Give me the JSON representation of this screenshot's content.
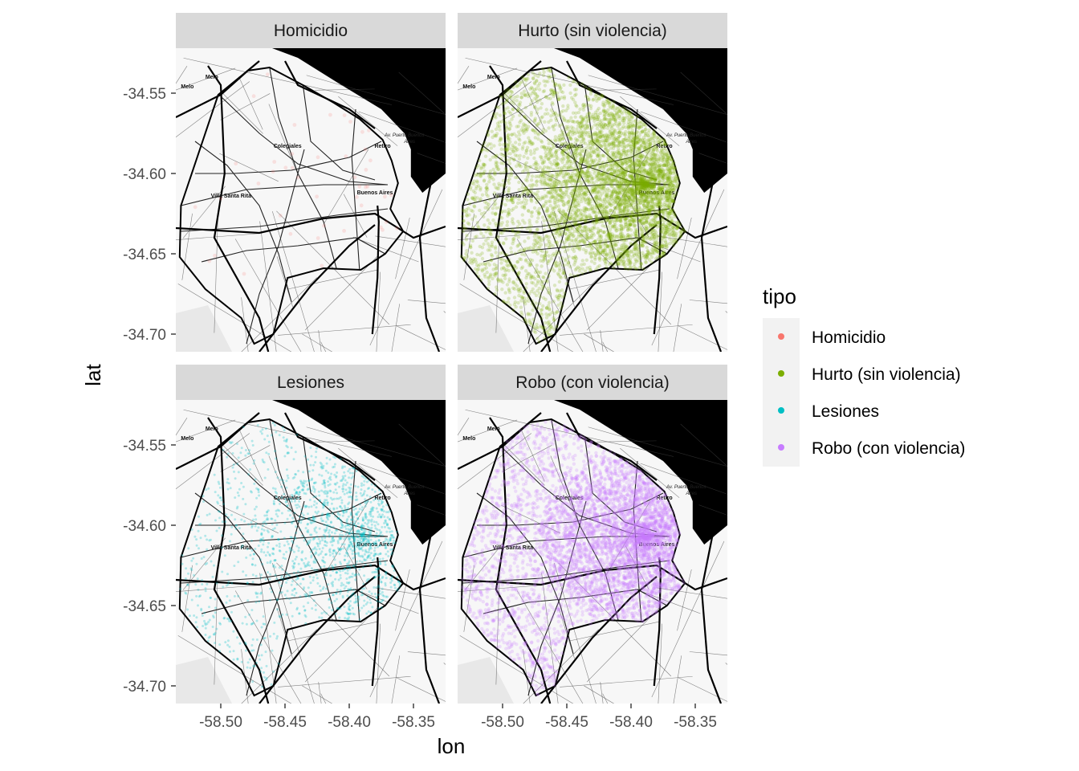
{
  "figure": {
    "xlabel": "lon",
    "ylabel": "lat",
    "legend_title": "tipo"
  },
  "chart_data": {
    "type": "scatter",
    "subtype": "faceted-map",
    "xlabel": "lon",
    "ylabel": "lat",
    "xlim": [
      -58.535,
      -58.325
    ],
    "ylim": [
      -34.711,
      -34.522
    ],
    "x_ticks": [
      -58.5,
      -58.45,
      -58.4,
      -58.35
    ],
    "x_tick_labels": [
      "-58.50",
      "-58.45",
      "-58.40",
      "-58.35"
    ],
    "y_ticks": [
      -34.55,
      -34.6,
      -34.65,
      -34.7
    ],
    "y_tick_labels": [
      "-34.55",
      "-34.60",
      "-34.65",
      "-34.70"
    ],
    "grid": false,
    "legend": {
      "title": "tipo",
      "placement": "right",
      "entries": [
        {
          "label": "Homicidio",
          "color": "#F8766D"
        },
        {
          "label": "Hurto (sin violencia)",
          "color": "#7CAE00"
        },
        {
          "label": "Lesiones",
          "color": "#00BFC4"
        },
        {
          "label": "Robo (con violencia)",
          "color": "#C77CFF"
        }
      ]
    },
    "facets": [
      {
        "title": "Homicidio",
        "color": "#F8766D",
        "density": "sparse"
      },
      {
        "title": "Hurto (sin violencia)",
        "color": "#7CAE00",
        "density": "very dense"
      },
      {
        "title": "Lesiones",
        "color": "#00BFC4",
        "density": "moderate"
      },
      {
        "title": "Robo (con violencia)",
        "color": "#C77CFF",
        "density": "very dense"
      }
    ],
    "basemap_labels": [
      {
        "text": "Melo",
        "lon": -58.507,
        "lat": -34.541
      },
      {
        "text": "Melo",
        "lon": -58.526,
        "lat": -34.547
      },
      {
        "text": "Colegiales",
        "lon": -58.448,
        "lat": -34.584
      },
      {
        "text": "Retiro",
        "lon": -58.374,
        "lat": -34.584
      },
      {
        "text": "Villa Santa Rita",
        "lon": -58.492,
        "lat": -34.615
      },
      {
        "text": "Buenos Aires",
        "lon": -58.38,
        "lat": -34.613
      },
      {
        "text": "Av. Puerto Buenos",
        "lon": -58.357,
        "lat": -34.577
      },
      {
        "text": "Aires",
        "lon": -58.353,
        "lat": -34.581
      }
    ]
  }
}
